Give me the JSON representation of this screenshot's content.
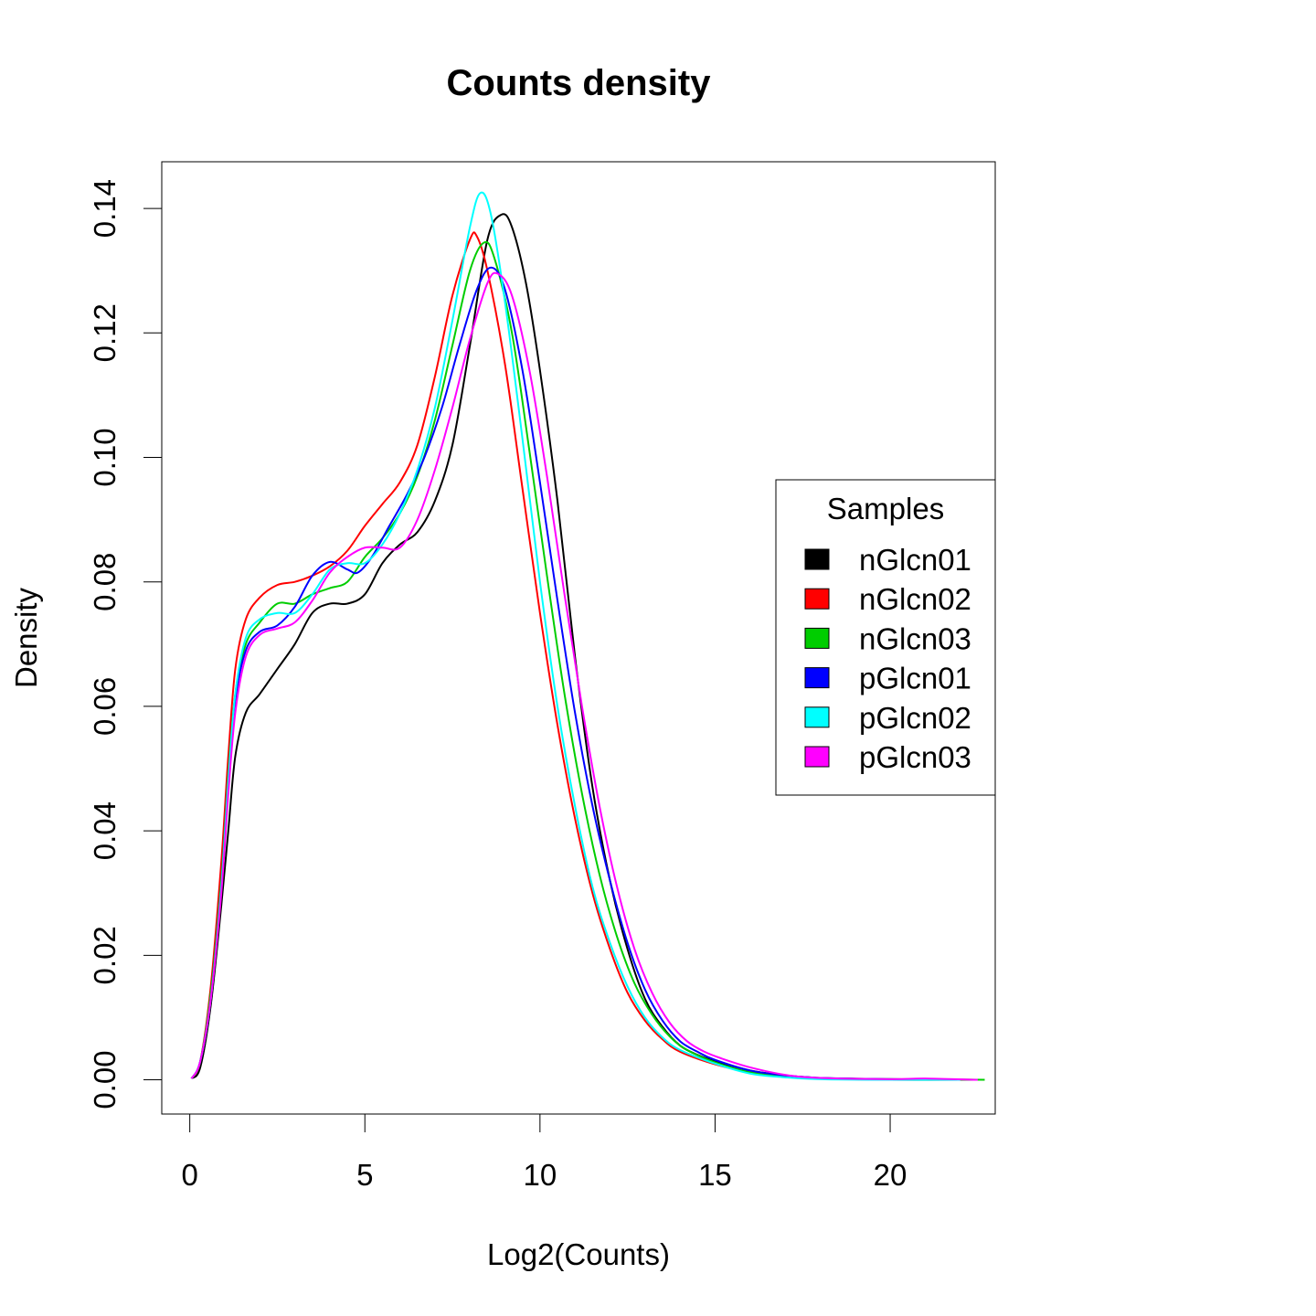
{
  "chart_data": {
    "type": "line",
    "title": "Counts density",
    "xlabel": "Log2(Counts)",
    "ylabel": "Density",
    "xlim": [
      -0.8,
      23.0
    ],
    "ylim": [
      -0.0055,
      0.1475
    ],
    "xticks": [
      0,
      5,
      10,
      15,
      20
    ],
    "xtick_labels": [
      "0",
      "5",
      "10",
      "15",
      "20"
    ],
    "yticks": [
      0,
      0.02,
      0.04,
      0.06,
      0.08,
      0.1,
      0.12,
      0.14
    ],
    "ytick_labels": [
      "0.00",
      "0.02",
      "0.04",
      "0.06",
      "0.08",
      "0.10",
      "0.12",
      "0.14"
    ],
    "grid": false,
    "legend": {
      "title": "Samples",
      "position": "right"
    },
    "series": [
      {
        "name": "nGlcn01",
        "color": "#000000",
        "points": [
          [
            0.05,
            0.0002
          ],
          [
            0.3,
            0.002
          ],
          [
            0.6,
            0.012
          ],
          [
            0.9,
            0.028
          ],
          [
            1.1,
            0.04
          ],
          [
            1.3,
            0.052
          ],
          [
            1.6,
            0.059
          ],
          [
            2.0,
            0.062
          ],
          [
            2.5,
            0.066
          ],
          [
            3.0,
            0.07
          ],
          [
            3.5,
            0.075
          ],
          [
            4.0,
            0.0765
          ],
          [
            4.5,
            0.0765
          ],
          [
            5.0,
            0.078
          ],
          [
            5.5,
            0.083
          ],
          [
            6.0,
            0.086
          ],
          [
            6.5,
            0.088
          ],
          [
            7.0,
            0.093
          ],
          [
            7.5,
            0.102
          ],
          [
            8.0,
            0.118
          ],
          [
            8.5,
            0.135
          ],
          [
            8.9,
            0.139
          ],
          [
            9.2,
            0.137
          ],
          [
            9.6,
            0.128
          ],
          [
            10.0,
            0.114
          ],
          [
            10.5,
            0.093
          ],
          [
            11.0,
            0.068
          ],
          [
            11.5,
            0.047
          ],
          [
            12.0,
            0.032
          ],
          [
            12.5,
            0.021
          ],
          [
            13.0,
            0.013
          ],
          [
            13.5,
            0.0085
          ],
          [
            14.0,
            0.0055
          ],
          [
            14.5,
            0.004
          ],
          [
            15.0,
            0.003
          ],
          [
            16.0,
            0.0015
          ],
          [
            17.0,
            0.0007
          ],
          [
            18.0,
            0.0003
          ],
          [
            20.0,
            0.0001
          ],
          [
            22.5,
            0.0
          ]
        ]
      },
      {
        "name": "nGlcn02",
        "color": "#ff0000",
        "points": [
          [
            0.05,
            0.0002
          ],
          [
            0.3,
            0.003
          ],
          [
            0.6,
            0.015
          ],
          [
            0.9,
            0.035
          ],
          [
            1.1,
            0.052
          ],
          [
            1.3,
            0.066
          ],
          [
            1.6,
            0.074
          ],
          [
            2.0,
            0.0775
          ],
          [
            2.5,
            0.0795
          ],
          [
            3.0,
            0.08
          ],
          [
            3.5,
            0.081
          ],
          [
            4.0,
            0.0825
          ],
          [
            4.5,
            0.085
          ],
          [
            5.0,
            0.089
          ],
          [
            5.5,
            0.0925
          ],
          [
            6.0,
            0.096
          ],
          [
            6.5,
            0.102
          ],
          [
            7.0,
            0.113
          ],
          [
            7.5,
            0.126
          ],
          [
            8.0,
            0.135
          ],
          [
            8.2,
            0.1355
          ],
          [
            8.5,
            0.13
          ],
          [
            9.0,
            0.115
          ],
          [
            9.5,
            0.095
          ],
          [
            10.0,
            0.075
          ],
          [
            10.5,
            0.057
          ],
          [
            11.0,
            0.042
          ],
          [
            11.5,
            0.03
          ],
          [
            12.0,
            0.021
          ],
          [
            12.5,
            0.014
          ],
          [
            13.0,
            0.0095
          ],
          [
            13.5,
            0.0065
          ],
          [
            14.0,
            0.0045
          ],
          [
            15.0,
            0.0025
          ],
          [
            16.0,
            0.0012
          ],
          [
            17.0,
            0.0006
          ],
          [
            18.0,
            0.0002
          ],
          [
            20.0,
            0.0
          ],
          [
            22.0,
            0.0
          ]
        ]
      },
      {
        "name": "nGlcn03",
        "color": "#00cd00",
        "points": [
          [
            0.05,
            0.0002
          ],
          [
            0.3,
            0.003
          ],
          [
            0.6,
            0.014
          ],
          [
            0.9,
            0.032
          ],
          [
            1.1,
            0.049
          ],
          [
            1.3,
            0.062
          ],
          [
            1.6,
            0.07
          ],
          [
            2.0,
            0.0735
          ],
          [
            2.5,
            0.0765
          ],
          [
            3.0,
            0.0765
          ],
          [
            3.5,
            0.078
          ],
          [
            4.0,
            0.079
          ],
          [
            4.5,
            0.08
          ],
          [
            5.0,
            0.084
          ],
          [
            5.5,
            0.087
          ],
          [
            6.0,
            0.091
          ],
          [
            6.5,
            0.097
          ],
          [
            7.0,
            0.106
          ],
          [
            7.5,
            0.118
          ],
          [
            8.0,
            0.13
          ],
          [
            8.4,
            0.1345
          ],
          [
            8.7,
            0.132
          ],
          [
            9.2,
            0.12
          ],
          [
            9.7,
            0.101
          ],
          [
            10.2,
            0.081
          ],
          [
            10.7,
            0.062
          ],
          [
            11.2,
            0.046
          ],
          [
            11.7,
            0.033
          ],
          [
            12.2,
            0.023
          ],
          [
            12.7,
            0.0155
          ],
          [
            13.2,
            0.0105
          ],
          [
            13.7,
            0.007
          ],
          [
            14.2,
            0.0048
          ],
          [
            15.0,
            0.0028
          ],
          [
            16.0,
            0.0012
          ],
          [
            17.0,
            0.0005
          ],
          [
            18.0,
            0.0002
          ],
          [
            20.0,
            0.0001
          ],
          [
            22.7,
            0.0
          ]
        ]
      },
      {
        "name": "pGlcn01",
        "color": "#0000ff",
        "points": [
          [
            0.05,
            0.0002
          ],
          [
            0.3,
            0.003
          ],
          [
            0.6,
            0.013
          ],
          [
            0.9,
            0.031
          ],
          [
            1.1,
            0.048
          ],
          [
            1.3,
            0.061
          ],
          [
            1.6,
            0.069
          ],
          [
            2.0,
            0.072
          ],
          [
            2.5,
            0.073
          ],
          [
            3.0,
            0.076
          ],
          [
            3.5,
            0.081
          ],
          [
            4.0,
            0.0832
          ],
          [
            4.5,
            0.082
          ],
          [
            4.8,
            0.0815
          ],
          [
            5.2,
            0.084
          ],
          [
            5.7,
            0.089
          ],
          [
            6.2,
            0.094
          ],
          [
            6.7,
            0.1
          ],
          [
            7.2,
            0.108
          ],
          [
            7.7,
            0.118
          ],
          [
            8.2,
            0.127
          ],
          [
            8.6,
            0.1305
          ],
          [
            9.0,
            0.127
          ],
          [
            9.5,
            0.114
          ],
          [
            10.0,
            0.096
          ],
          [
            10.5,
            0.077
          ],
          [
            11.0,
            0.059
          ],
          [
            11.5,
            0.044
          ],
          [
            12.0,
            0.032
          ],
          [
            12.5,
            0.022
          ],
          [
            13.0,
            0.0145
          ],
          [
            13.5,
            0.0095
          ],
          [
            14.0,
            0.0062
          ],
          [
            14.5,
            0.0045
          ],
          [
            15.0,
            0.0032
          ],
          [
            16.0,
            0.0015
          ],
          [
            17.0,
            0.0007
          ],
          [
            18.0,
            0.0003
          ],
          [
            20.0,
            0.0001
          ],
          [
            22.0,
            0.0
          ]
        ]
      },
      {
        "name": "pGlcn02",
        "color": "#00ffff",
        "points": [
          [
            0.05,
            0.0002
          ],
          [
            0.3,
            0.003
          ],
          [
            0.6,
            0.013
          ],
          [
            0.9,
            0.031
          ],
          [
            1.1,
            0.048
          ],
          [
            1.3,
            0.062
          ],
          [
            1.6,
            0.071
          ],
          [
            2.0,
            0.074
          ],
          [
            2.5,
            0.075
          ],
          [
            3.0,
            0.075
          ],
          [
            3.5,
            0.078
          ],
          [
            4.0,
            0.082
          ],
          [
            4.5,
            0.083
          ],
          [
            5.0,
            0.083
          ],
          [
            5.5,
            0.086
          ],
          [
            6.0,
            0.091
          ],
          [
            6.5,
            0.098
          ],
          [
            7.0,
            0.108
          ],
          [
            7.5,
            0.122
          ],
          [
            8.0,
            0.137
          ],
          [
            8.3,
            0.1425
          ],
          [
            8.6,
            0.139
          ],
          [
            9.0,
            0.125
          ],
          [
            9.5,
            0.103
          ],
          [
            10.0,
            0.08
          ],
          [
            10.5,
            0.06
          ],
          [
            11.0,
            0.044
          ],
          [
            11.5,
            0.031
          ],
          [
            12.0,
            0.022
          ],
          [
            12.5,
            0.015
          ],
          [
            13.0,
            0.01
          ],
          [
            13.5,
            0.0068
          ],
          [
            14.0,
            0.0048
          ],
          [
            15.0,
            0.0026
          ],
          [
            16.0,
            0.001
          ],
          [
            17.0,
            0.0004
          ],
          [
            18.0,
            0.0001
          ],
          [
            20.0,
            0.0
          ],
          [
            22.0,
            0.0
          ]
        ]
      },
      {
        "name": "pGlcn03",
        "color": "#ff00ff",
        "points": [
          [
            0.05,
            0.0002
          ],
          [
            0.3,
            0.003
          ],
          [
            0.6,
            0.013
          ],
          [
            0.9,
            0.03
          ],
          [
            1.1,
            0.046
          ],
          [
            1.3,
            0.059
          ],
          [
            1.6,
            0.068
          ],
          [
            2.0,
            0.0715
          ],
          [
            2.5,
            0.0725
          ],
          [
            3.0,
            0.0735
          ],
          [
            3.5,
            0.077
          ],
          [
            4.0,
            0.0815
          ],
          [
            4.5,
            0.084
          ],
          [
            5.0,
            0.0855
          ],
          [
            5.5,
            0.0855
          ],
          [
            6.0,
            0.0855
          ],
          [
            6.5,
            0.09
          ],
          [
            7.0,
            0.098
          ],
          [
            7.5,
            0.108
          ],
          [
            8.0,
            0.119
          ],
          [
            8.5,
            0.128
          ],
          [
            8.8,
            0.1295
          ],
          [
            9.2,
            0.126
          ],
          [
            9.7,
            0.114
          ],
          [
            10.2,
            0.097
          ],
          [
            10.7,
            0.078
          ],
          [
            11.2,
            0.06
          ],
          [
            11.7,
            0.044
          ],
          [
            12.2,
            0.031
          ],
          [
            12.7,
            0.021
          ],
          [
            13.2,
            0.014
          ],
          [
            13.7,
            0.0092
          ],
          [
            14.2,
            0.0062
          ],
          [
            14.7,
            0.0045
          ],
          [
            15.2,
            0.0034
          ],
          [
            16.0,
            0.002
          ],
          [
            17.0,
            0.0008
          ],
          [
            18.0,
            0.0003
          ],
          [
            20.0,
            0.0001
          ],
          [
            21.0,
            0.0002
          ],
          [
            22.5,
            0.0
          ]
        ]
      }
    ]
  }
}
